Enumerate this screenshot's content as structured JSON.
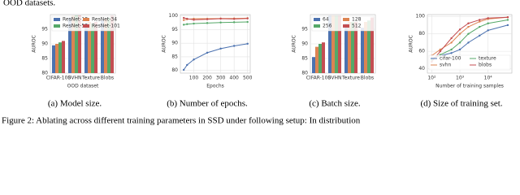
{
  "header_text": "OOD datasets.",
  "figure_caption": "Figure 2: Ablating across different training parameters in SSD under following setup: In distribution",
  "chart_data": [
    {
      "type": "bar",
      "caption": "(a) Model size.",
      "ylabel": "AUROC",
      "xlabel": "OOD dataset",
      "categories": [
        "CIFAR-100",
        "SVHN",
        "Texture",
        "Blobs"
      ],
      "series": [
        {
          "name": "ResNet-18",
          "color": "#4c72b0",
          "values": [
            89.5,
            99.0,
            97.0,
            98.0
          ]
        },
        {
          "name": "ResNet-34",
          "color": "#dd8452",
          "values": [
            90.0,
            99.5,
            97.5,
            98.5
          ]
        },
        {
          "name": "ResNet-50",
          "color": "#55a868",
          "values": [
            90.5,
            99.6,
            97.0,
            99.0
          ]
        },
        {
          "name": "ResNet-101",
          "color": "#c44e52",
          "values": [
            91.0,
            99.6,
            97.5,
            99.5
          ]
        }
      ],
      "ylim": [
        80,
        100
      ],
      "yticks": [
        80,
        85,
        90,
        95
      ],
      "grid": true,
      "legend": "upper center"
    },
    {
      "type": "line",
      "caption": "(b) Number of epochs.",
      "ylabel": "AUROC",
      "xlabel": "Epochs",
      "x": [
        25,
        50,
        100,
        200,
        300,
        400,
        500
      ],
      "series": [
        {
          "color": "#4c72b0",
          "values": [
            80.2,
            82.0,
            84.0,
            86.5,
            88.0,
            89.0,
            89.8
          ]
        },
        {
          "color": "#55a868",
          "values": [
            96.8,
            97.0,
            97.2,
            97.4,
            97.6,
            97.7,
            97.8
          ]
        },
        {
          "color": "#dd8452",
          "values": [
            98.5,
            98.8,
            99.0,
            99.0,
            99.1,
            99.1,
            99.2
          ]
        },
        {
          "color": "#c44e52",
          "values": [
            99.3,
            99.0,
            98.6,
            98.8,
            99.0,
            98.9,
            99.1
          ]
        }
      ],
      "xlim": [
        0,
        520
      ],
      "xticks": [
        100,
        200,
        300,
        400,
        500
      ],
      "ylim": [
        79,
        100.5
      ],
      "yticks": [
        80,
        85,
        90,
        95,
        100
      ],
      "grid": true
    },
    {
      "type": "bar",
      "caption": "(c) Batch size.",
      "ylabel": "AUROC",
      "categories": [
        "CIFAR-100",
        "SVHN",
        "Texture",
        "Blobs"
      ],
      "series": [
        {
          "name": "64",
          "color": "#4c72b0",
          "values": [
            85.5,
            99.5,
            97.0,
            95.5
          ]
        },
        {
          "name": "128",
          "color": "#dd8452",
          "values": [
            89.0,
            99.5,
            97.5,
            97.5
          ]
        },
        {
          "name": "256",
          "color": "#55a868",
          "values": [
            90.0,
            99.5,
            97.5,
            98.0
          ]
        },
        {
          "name": "512",
          "color": "#c44e52",
          "values": [
            90.5,
            99.5,
            97.5,
            99.0
          ]
        }
      ],
      "ylim": [
        80,
        100
      ],
      "yticks": [
        80,
        85,
        90,
        95
      ],
      "grid": true,
      "legend": "upper center"
    },
    {
      "type": "line",
      "caption": "(d) Size of training set.",
      "ylabel": "AUROC",
      "xlabel": "Number of training samples",
      "x": [
        100,
        200,
        500,
        1000,
        2000,
        5000,
        10000,
        50000
      ],
      "series": [
        {
          "name": "cifar-100",
          "color": "#4c72b0",
          "values": [
            52,
            55,
            58,
            62,
            70,
            78,
            84,
            90
          ]
        },
        {
          "name": "texture",
          "color": "#55a868",
          "values": [
            50,
            56,
            62,
            70,
            80,
            88,
            92,
            96
          ]
        },
        {
          "name": "svhn",
          "color": "#dd8452",
          "values": [
            55,
            62,
            70,
            80,
            88,
            94,
            97,
            99
          ]
        },
        {
          "name": "blobs",
          "color": "#c44e52",
          "values": [
            48,
            60,
            75,
            85,
            92,
            96,
            98,
            99
          ]
        }
      ],
      "xscale": "log",
      "xlim": [
        70,
        70000
      ],
      "xticks": [
        {
          "value": 100,
          "label": "10²"
        },
        {
          "value": 1000,
          "label": "10³"
        },
        {
          "value": 10000,
          "label": "10⁴"
        }
      ],
      "ylim": [
        35,
        102
      ],
      "yticks": [
        40,
        60,
        80,
        100
      ],
      "grid": true,
      "legend": "lower right"
    }
  ]
}
